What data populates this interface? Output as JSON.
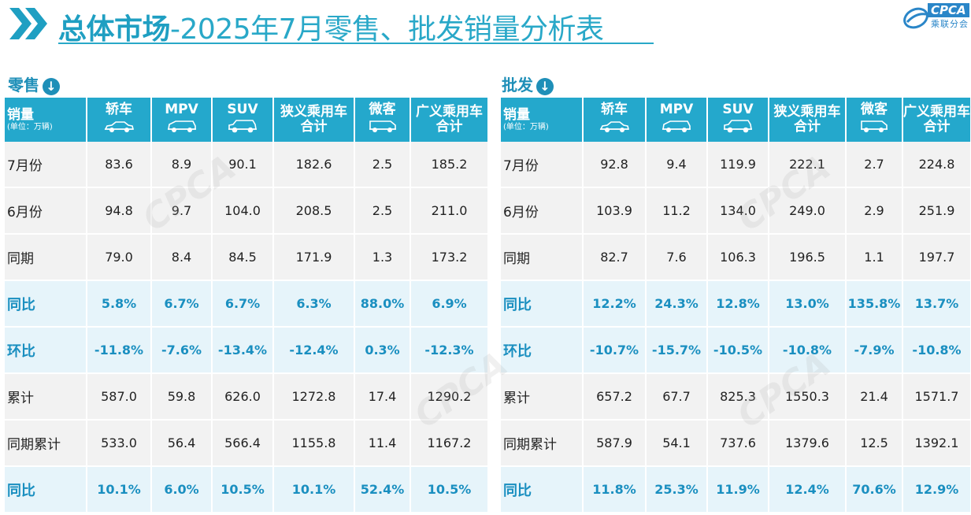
{
  "header": {
    "title_bold": "总体市场",
    "title_rest": "-2025年7月零售、批发销量分析表",
    "logo_text": "CPCA",
    "logo_cn": "乘联分会"
  },
  "retail": {
    "section_label": "零售",
    "columns": [
      {
        "label": "销量",
        "unit": "(单位：万辆)"
      },
      {
        "label": "轿车",
        "icon": "sedan-icon"
      },
      {
        "label": "MPV",
        "icon": "mpv-icon"
      },
      {
        "label": "SUV",
        "icon": "suv-icon"
      },
      {
        "label": "狭义乘用车合计"
      },
      {
        "label": "微客",
        "icon": "minivan-icon"
      },
      {
        "label": "广义乘用车合计"
      }
    ],
    "rows": [
      {
        "label": "7月份",
        "values": [
          "83.6",
          "8.9",
          "90.1",
          "182.6",
          "2.5",
          "185.2"
        ],
        "style": "white"
      },
      {
        "label": "6月份",
        "values": [
          "94.8",
          "9.7",
          "104.0",
          "208.5",
          "2.5",
          "211.0"
        ],
        "style": "white"
      },
      {
        "label": "同期",
        "values": [
          "79.0",
          "8.4",
          "84.5",
          "171.9",
          "1.3",
          "173.2"
        ],
        "style": "white"
      },
      {
        "label": "同比",
        "values": [
          "5.8%",
          "6.7%",
          "6.7%",
          "6.3%",
          "88.0%",
          "6.9%"
        ],
        "style": "blue"
      },
      {
        "label": "环比",
        "values": [
          "-11.8%",
          "-7.6%",
          "-13.4%",
          "-12.4%",
          "0.3%",
          "-12.3%"
        ],
        "style": "blue"
      },
      {
        "label": "累计",
        "values": [
          "587.0",
          "59.8",
          "626.0",
          "1272.8",
          "17.4",
          "1290.2"
        ],
        "style": "white"
      },
      {
        "label": "同期累计",
        "values": [
          "533.0",
          "56.4",
          "566.4",
          "1155.8",
          "11.4",
          "1167.2"
        ],
        "style": "white"
      },
      {
        "label": "同比",
        "values": [
          "10.1%",
          "6.0%",
          "10.5%",
          "10.1%",
          "52.4%",
          "10.5%"
        ],
        "style": "blue"
      }
    ]
  },
  "wholesale": {
    "section_label": "批发",
    "columns": [
      {
        "label": "销量",
        "unit": "(单位：万辆)"
      },
      {
        "label": "轿车",
        "icon": "sedan-icon"
      },
      {
        "label": "MPV",
        "icon": "mpv-icon"
      },
      {
        "label": "SUV",
        "icon": "suv-icon"
      },
      {
        "label": "狭义乘用车合计"
      },
      {
        "label": "微客",
        "icon": "minivan-icon"
      },
      {
        "label": "广义乘用车合计"
      }
    ],
    "rows": [
      {
        "label": "7月份",
        "values": [
          "92.8",
          "9.4",
          "119.9",
          "222.1",
          "2.7",
          "224.8"
        ],
        "style": "white"
      },
      {
        "label": "6月份",
        "values": [
          "103.9",
          "11.2",
          "134.0",
          "249.0",
          "2.9",
          "251.9"
        ],
        "style": "white"
      },
      {
        "label": "同期",
        "values": [
          "82.7",
          "7.6",
          "106.3",
          "196.5",
          "1.1",
          "197.7"
        ],
        "style": "white"
      },
      {
        "label": "同比",
        "values": [
          "12.2%",
          "24.3%",
          "12.8%",
          "13.0%",
          "135.8%",
          "13.7%"
        ],
        "style": "blue"
      },
      {
        "label": "环比",
        "values": [
          "-10.7%",
          "-15.7%",
          "-10.5%",
          "-10.8%",
          "-7.9%",
          "-10.8%"
        ],
        "style": "blue"
      },
      {
        "label": "累计",
        "values": [
          "657.2",
          "67.7",
          "825.3",
          "1550.3",
          "21.4",
          "1571.7"
        ],
        "style": "white"
      },
      {
        "label": "同期累计",
        "values": [
          "587.9",
          "54.1",
          "737.6",
          "1379.6",
          "12.5",
          "1392.1"
        ],
        "style": "white"
      },
      {
        "label": "同比",
        "values": [
          "11.8%",
          "25.3%",
          "11.9%",
          "12.4%",
          "70.6%",
          "12.9%"
        ],
        "style": "blue"
      }
    ]
  },
  "colors": {
    "accent": "#24a8cc",
    "title": "#29a8c8",
    "highlight_text": "#1a8fc0",
    "highlight_row": "#e6f4fa",
    "plain_row": "#f2f2f2"
  }
}
